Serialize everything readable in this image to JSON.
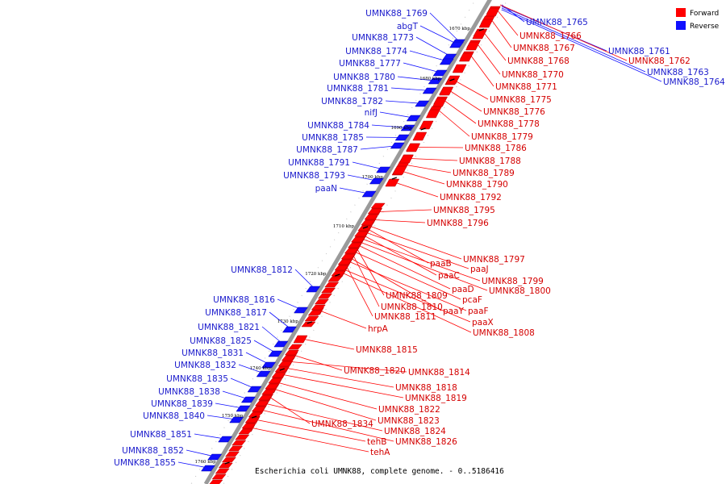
{
  "legend": {
    "forward_label": "Forward",
    "reverse_label": "Reverse",
    "forward_color": "#ff0000",
    "reverse_color": "#1010ff"
  },
  "caption": "Escherichia coli UMNK88, complete genome. - 0..5186416",
  "kbp_ticks": [
    "1670 kbp",
    "1680 kbp",
    "1690 kbp",
    "1700 kbp",
    "1710 kbp",
    "1720 kbp",
    "1730 kbp",
    "1740 kbp",
    "1750 kbp",
    "1760 kbp"
  ],
  "reverse_labels": [
    "UMNK88_1769",
    "abgT",
    "UMNK88_1773",
    "UMNK88_1774",
    "UMNK88_1777",
    "UMNK88_1780",
    "UMNK88_1781",
    "UMNK88_1782",
    "nifJ",
    "UMNK88_1784",
    "UMNK88_1785",
    "UMNK88_1787",
    "UMNK88_1791",
    "UMNK88_1793",
    "paaN",
    "UMNK88_1812",
    "UMNK88_1816",
    "UMNK88_1817",
    "UMNK88_1821",
    "UMNK88_1825",
    "UMNK88_1831",
    "UMNK88_1832",
    "UMNK88_1835",
    "UMNK88_1838",
    "UMNK88_1839",
    "UMNK88_1840",
    "UMNK88_1851",
    "UMNK88_1852",
    "UMNK88_1855"
  ],
  "reverse_far_labels": [
    "UMNK88_1765",
    "UMNK88_1761",
    "UMNK88_1763",
    "UMNK88_1764"
  ],
  "forward_labels": [
    "UMNK88_1766",
    "UMNK88_1767",
    "UMNK88_1768",
    "UMNK88_1770",
    "UMNK88_1771",
    "UMNK88_1775",
    "UMNK88_1776",
    "UMNK88_1778",
    "UMNK88_1779",
    "UMNK88_1786",
    "UMNK88_1788",
    "UMNK88_1789",
    "UMNK88_1790",
    "UMNK88_1792",
    "UMNK88_1795",
    "UMNK88_1796",
    "UMNK88_1797",
    "paaB",
    "paaJ",
    "paaC",
    "UMNK88_1799",
    "UMNK88_1800",
    "paaD",
    "UMNK88_1809",
    "pcaF",
    "UMNK88_1810",
    "paaY",
    "paaF",
    "UMNK88_1811",
    "paaX",
    "UMNK88_1808",
    "hrpA",
    "UMNK88_1815",
    "UMNK88_1820",
    "UMNK88_1814",
    "UMNK88_1818",
    "UMNK88_1819",
    "UMNK88_1822",
    "UMNK88_1823",
    "UMNK88_1834",
    "UMNK88_1824",
    "UMNK88_1826",
    "tehB",
    "tehA",
    "UMNK88_1762"
  ]
}
